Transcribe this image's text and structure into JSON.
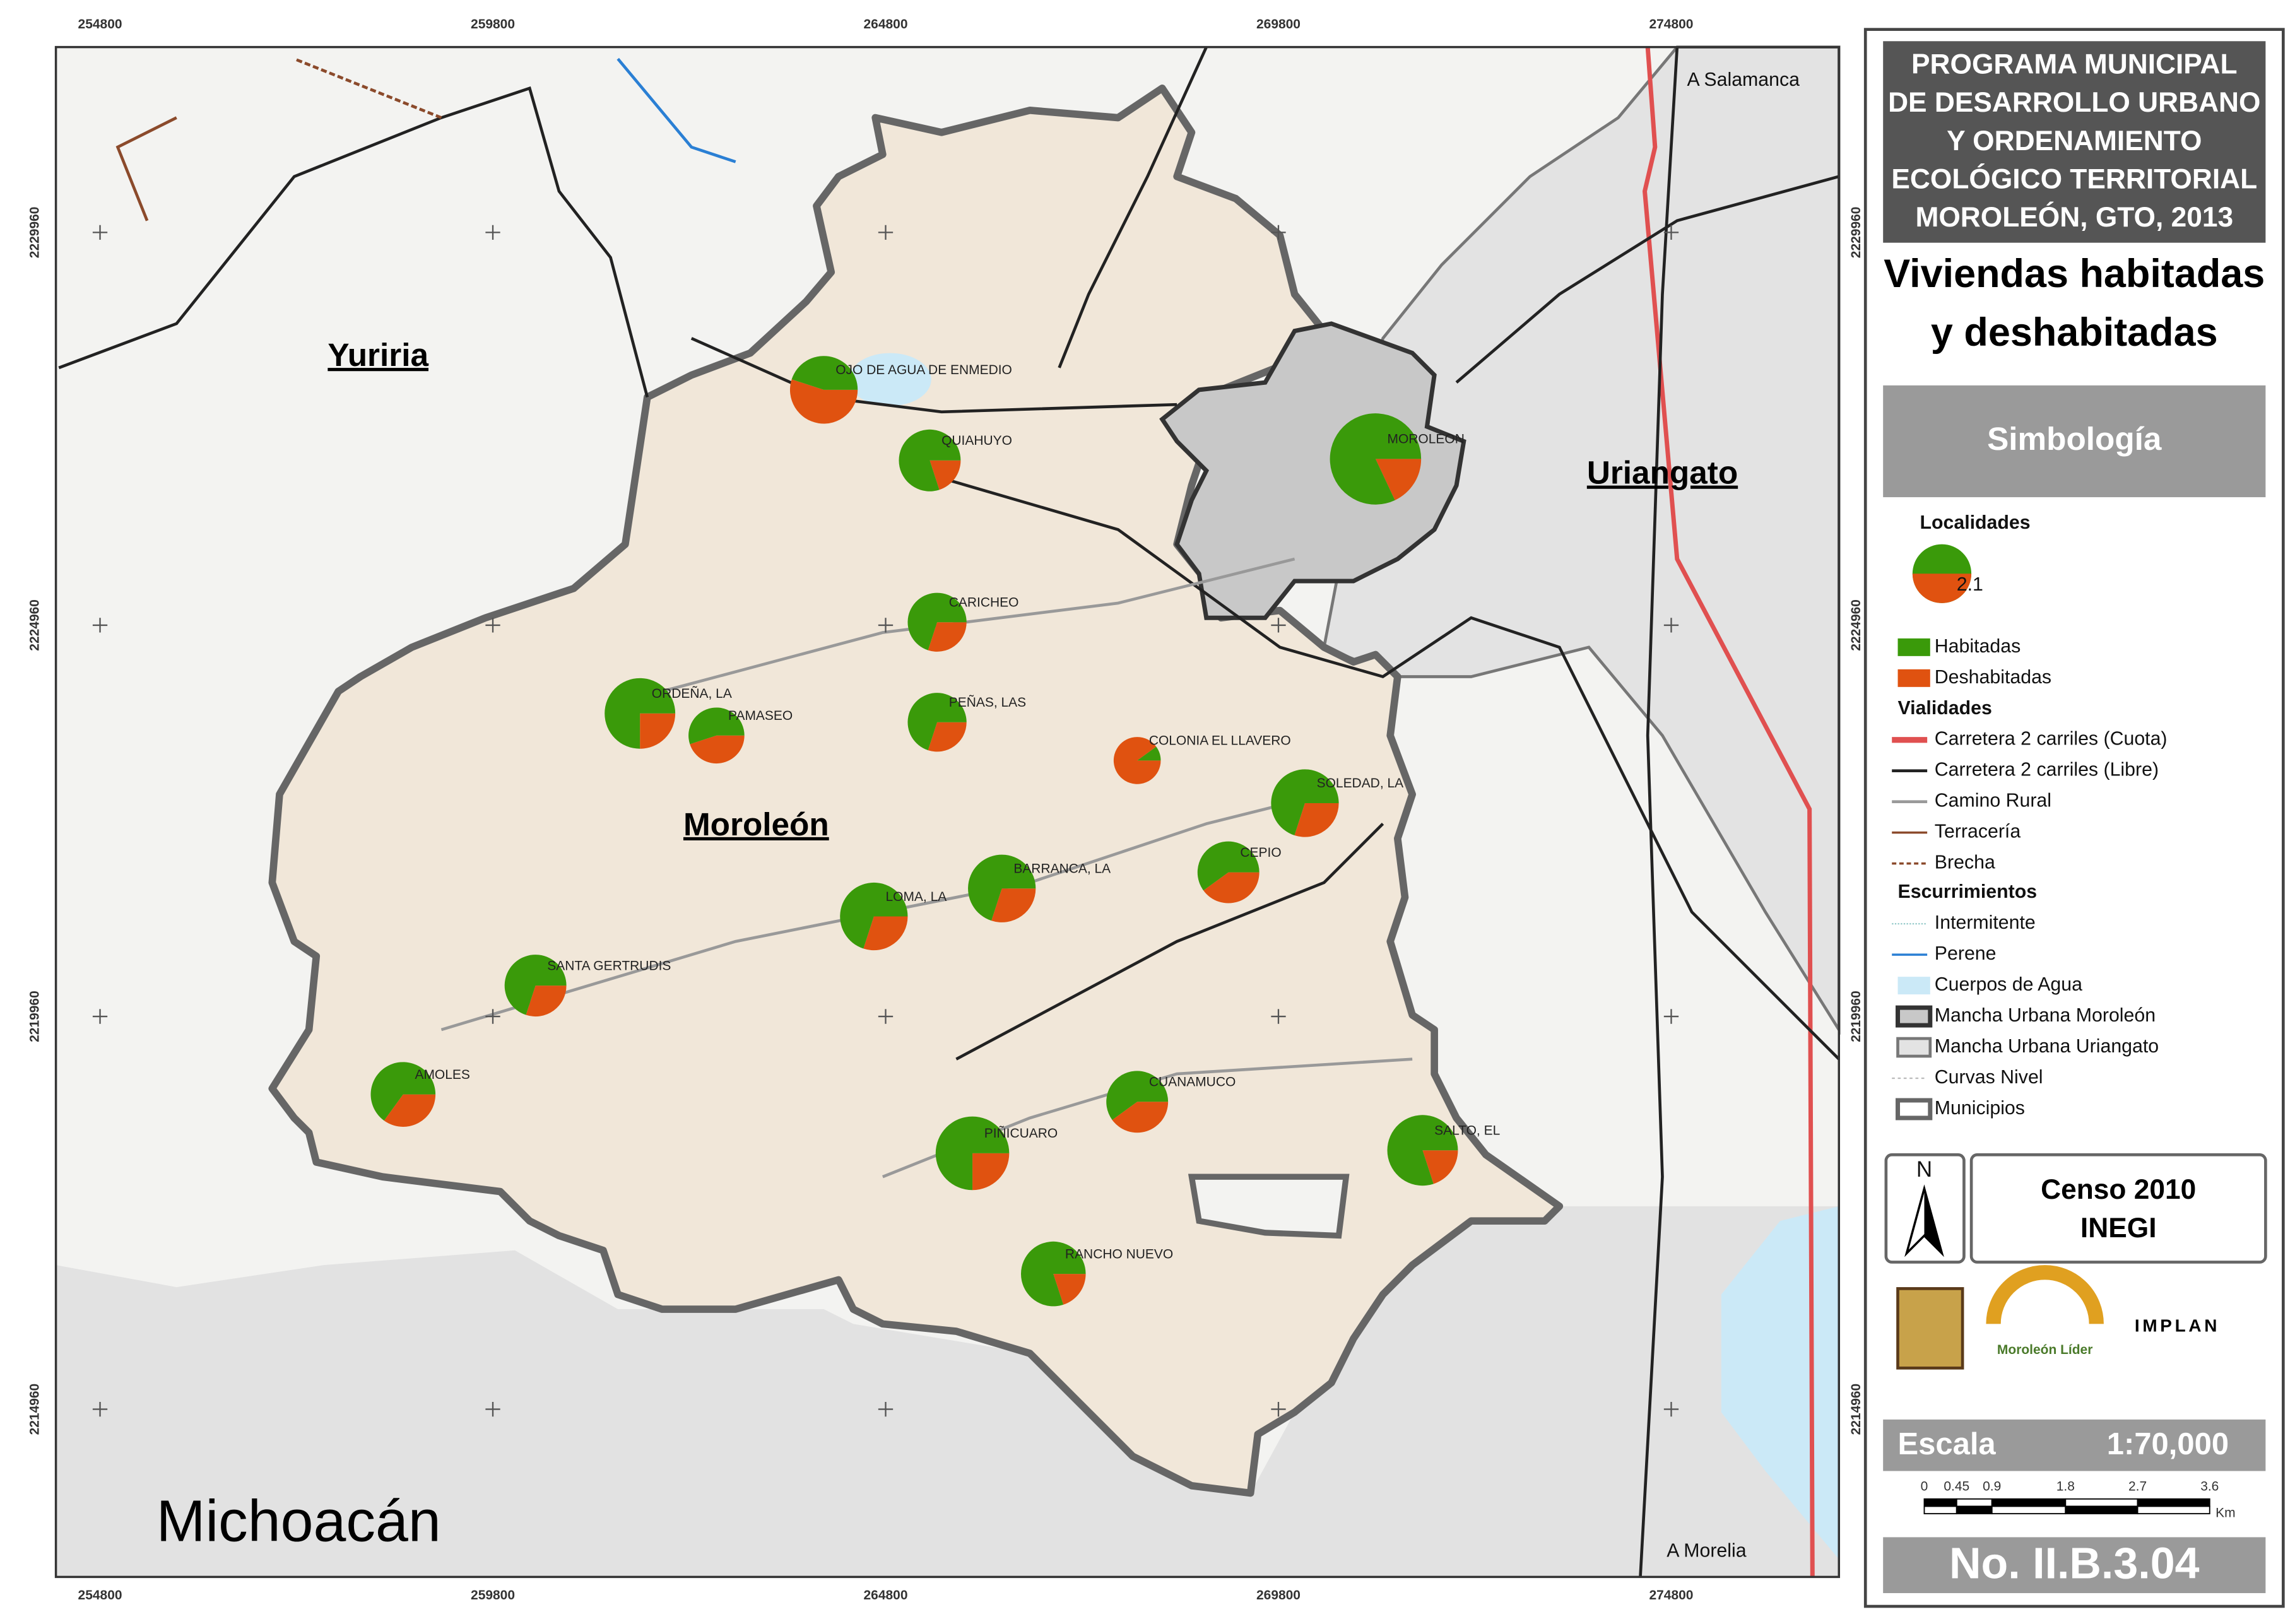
{
  "map": {
    "x_ticks": [
      "254800",
      "259800",
      "264800",
      "269800",
      "274800"
    ],
    "y_ticks": [
      "2229960",
      "2224960",
      "2219960",
      "2214960"
    ],
    "places": [
      "Yuriria",
      "Moroleón",
      "Uriangato",
      "Michoacán"
    ],
    "roads_to": [
      "A Salamanca",
      "A Morelia"
    ]
  },
  "localities": [
    {
      "name": "OJO DE AGUA DE ENMEDIO",
      "habitadas": 45,
      "deshabitadas": 55
    },
    {
      "name": "QUIAHUYO",
      "habitadas": 80,
      "deshabitadas": 20
    },
    {
      "name": "MOROLEON",
      "habitadas": 82,
      "deshabitadas": 18
    },
    {
      "name": "CARICHEO",
      "habitadas": 70,
      "deshabitadas": 30
    },
    {
      "name": "ORDEÑA, LA",
      "habitadas": 75,
      "deshabitadas": 25
    },
    {
      "name": "PAMASEO",
      "habitadas": 55,
      "deshabitadas": 45
    },
    {
      "name": "PEÑAS, LAS",
      "habitadas": 70,
      "deshabitadas": 30
    },
    {
      "name": "COLONIA EL LLAVERO",
      "habitadas": 10,
      "deshabitadas": 90
    },
    {
      "name": "SOLEDAD, LA",
      "habitadas": 70,
      "deshabitadas": 30
    },
    {
      "name": "CEPIO",
      "habitadas": 60,
      "deshabitadas": 40
    },
    {
      "name": "BARRANCA, LA",
      "habitadas": 70,
      "deshabitadas": 30
    },
    {
      "name": "LOMA, LA",
      "habitadas": 70,
      "deshabitadas": 30
    },
    {
      "name": "SANTA GERTRUDIS",
      "habitadas": 70,
      "deshabitadas": 30
    },
    {
      "name": "AMOLES",
      "habitadas": 65,
      "deshabitadas": 35
    },
    {
      "name": "CUANAMUCO",
      "habitadas": 60,
      "deshabitadas": 40
    },
    {
      "name": "PIÑICUARO",
      "habitadas": 75,
      "deshabitadas": 25
    },
    {
      "name": "SALTO, EL",
      "habitadas": 80,
      "deshabitadas": 20
    },
    {
      "name": "RANCHO NUEVO",
      "habitadas": 80,
      "deshabitadas": 20
    }
  ],
  "panel": {
    "program": [
      "PROGRAMA MUNICIPAL",
      "DE DESARROLLO URBANO",
      "Y ORDENAMIENTO",
      "ECOLÓGICO TERRITORIAL",
      "MOROLEÓN, GTO, 2013"
    ],
    "title": [
      "Viviendas habitadas",
      "y deshabitadas"
    ],
    "simbologia": "Simbología",
    "localidades": "Localidades",
    "sample": "2.1",
    "pie_legend": [
      "Habitadas",
      "Deshabitadas"
    ],
    "vialidades": "Vialidades",
    "road_legend": [
      "Carretera 2 carriles (Cuota)",
      "Carretera 2 carriles (Libre)",
      "Camino Rural",
      "Terracería",
      "Brecha"
    ],
    "escurrimientos": "Escurrimientos",
    "other_legend": [
      "Intermitente",
      "Perene",
      "Cuerpos de Agua",
      "Mancha Urbana Moroleón",
      "Mancha Urbana Uriangato",
      "Curvas Nivel",
      "Municipios"
    ],
    "north": "N",
    "censo": [
      "Censo 2010",
      "INEGI"
    ],
    "logos": [
      "Moroleón Líder",
      "IMPLAN"
    ],
    "escala": "Escala",
    "ratio": "1:70,000",
    "scale_ticks": [
      "0",
      "0.45",
      "0.9",
      "1.8",
      "2.7",
      "3.6"
    ],
    "unit": "Km",
    "number": "No. II.B.3.04"
  }
}
